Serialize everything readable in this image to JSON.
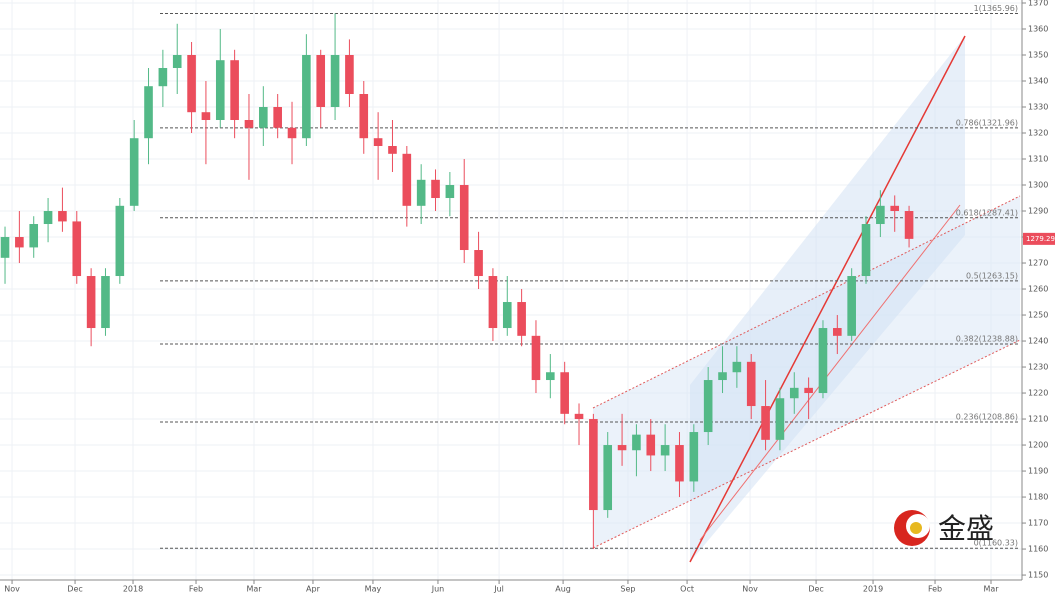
{
  "chart_data": {
    "type": "candlestick",
    "categories": [
      null,
      null,
      null,
      null,
      null,
      null,
      null,
      null,
      null,
      null,
      null,
      null,
      null,
      null,
      null,
      null,
      null,
      null,
      null,
      null,
      null,
      null,
      null,
      null,
      null,
      null,
      null,
      null,
      null,
      null,
      null,
      null,
      null,
      null,
      null,
      null,
      null,
      null,
      null,
      null,
      null,
      null,
      null,
      null,
      null,
      null,
      null,
      null,
      null,
      null,
      null,
      null,
      null,
      null,
      null,
      null,
      null,
      null,
      null,
      null,
      null,
      null,
      null,
      null
    ],
    "ohlc": [
      [
        1272,
        1284,
        1262,
        1280
      ],
      [
        1280,
        1290,
        1270,
        1276
      ],
      [
        1276,
        1288,
        1272,
        1285
      ],
      [
        1285,
        1295,
        1278,
        1290
      ],
      [
        1290,
        1299,
        1282,
        1286
      ],
      [
        1286,
        1290,
        1262,
        1265
      ],
      [
        1265,
        1268,
        1238,
        1245
      ],
      [
        1245,
        1268,
        1242,
        1265
      ],
      [
        1265,
        1295,
        1262,
        1292
      ],
      [
        1292,
        1325,
        1290,
        1318
      ],
      [
        1318,
        1345,
        1308,
        1338
      ],
      [
        1338,
        1352,
        1330,
        1345
      ],
      [
        1345,
        1362,
        1335,
        1350
      ],
      [
        1350,
        1355,
        1320,
        1328
      ],
      [
        1328,
        1340,
        1308,
        1325
      ],
      [
        1325,
        1360,
        1322,
        1348
      ],
      [
        1348,
        1352,
        1318,
        1325
      ],
      [
        1325,
        1335,
        1302,
        1322
      ],
      [
        1322,
        1338,
        1315,
        1330
      ],
      [
        1330,
        1335,
        1318,
        1322
      ],
      [
        1322,
        1332,
        1308,
        1318
      ],
      [
        1318,
        1358,
        1315,
        1350
      ],
      [
        1350,
        1352,
        1322,
        1330
      ],
      [
        1330,
        1366,
        1325,
        1350
      ],
      [
        1350,
        1356,
        1330,
        1335
      ],
      [
        1335,
        1340,
        1312,
        1318
      ],
      [
        1318,
        1328,
        1302,
        1315
      ],
      [
        1315,
        1325,
        1305,
        1312
      ],
      [
        1312,
        1315,
        1284,
        1292
      ],
      [
        1292,
        1308,
        1285,
        1302
      ],
      [
        1302,
        1306,
        1290,
        1295
      ],
      [
        1295,
        1305,
        1288,
        1300
      ],
      [
        1300,
        1310,
        1270,
        1275
      ],
      [
        1275,
        1282,
        1260,
        1265
      ],
      [
        1265,
        1268,
        1240,
        1245
      ],
      [
        1245,
        1265,
        1242,
        1255
      ],
      [
        1255,
        1260,
        1238,
        1242
      ],
      [
        1242,
        1248,
        1220,
        1225
      ],
      [
        1225,
        1235,
        1218,
        1228
      ],
      [
        1228,
        1232,
        1208,
        1212
      ],
      [
        1212,
        1216,
        1200,
        1210
      ],
      [
        1210,
        1212,
        1160,
        1175
      ],
      [
        1175,
        1205,
        1172,
        1200
      ],
      [
        1200,
        1212,
        1192,
        1198
      ],
      [
        1198,
        1208,
        1188,
        1204
      ],
      [
        1204,
        1210,
        1190,
        1196
      ],
      [
        1196,
        1208,
        1190,
        1200
      ],
      [
        1200,
        1205,
        1180,
        1186
      ],
      [
        1186,
        1208,
        1182,
        1205
      ],
      [
        1205,
        1230,
        1200,
        1225
      ],
      [
        1225,
        1238,
        1220,
        1228
      ],
      [
        1228,
        1238,
        1222,
        1232
      ],
      [
        1232,
        1235,
        1210,
        1215
      ],
      [
        1215,
        1225,
        1198,
        1202
      ],
      [
        1202,
        1222,
        1198,
        1218
      ],
      [
        1218,
        1228,
        1212,
        1222
      ],
      [
        1222,
        1226,
        1210,
        1220
      ],
      [
        1220,
        1248,
        1218,
        1245
      ],
      [
        1245,
        1250,
        1235,
        1242
      ],
      [
        1242,
        1268,
        1240,
        1265
      ],
      [
        1265,
        1288,
        1262,
        1285
      ],
      [
        1285,
        1298,
        1280,
        1292
      ],
      [
        1292,
        1296,
        1282,
        1290
      ],
      [
        1290,
        1292,
        1276,
        1279.29
      ]
    ],
    "up_color": "#53b987",
    "down_color": "#eb4d5c",
    "xlim": [
      -0.35,
      70.87
    ],
    "xticks": [
      {
        "value": 0.49,
        "label": "Nov"
      },
      {
        "value": 4.88,
        "label": "Dec"
      },
      {
        "value": 8.92,
        "label": "2018"
      },
      {
        "value": 13.31,
        "label": "Feb"
      },
      {
        "value": 17.35,
        "label": "Mar"
      },
      {
        "value": 21.46,
        "label": "Apr"
      },
      {
        "value": 25.64,
        "label": "May"
      },
      {
        "value": 30.17,
        "label": "Jun"
      },
      {
        "value": 34.43,
        "label": "Jul"
      },
      {
        "value": 38.89,
        "label": "Aug"
      },
      {
        "value": 43.41,
        "label": "Sep"
      },
      {
        "value": 47.53,
        "label": "Oct"
      },
      {
        "value": 51.92,
        "label": "Nov"
      },
      {
        "value": 56.52,
        "label": "Dec"
      },
      {
        "value": 60.49,
        "label": "2019"
      },
      {
        "value": 64.81,
        "label": "Feb"
      },
      {
        "value": 68.71,
        "label": "Mar"
      }
    ],
    "ylim": [
      1148.1,
      1371.15
    ],
    "yticks": [
      1150,
      1160,
      1170,
      1180,
      1190,
      1200,
      1210,
      1220,
      1230,
      1240,
      1250,
      1260,
      1270,
      1280,
      1290,
      1300,
      1310,
      1320,
      1330,
      1340,
      1350,
      1360,
      1370
    ],
    "grid": true,
    "fib_levels": [
      {
        "value": 1365.96,
        "label": "1(1365.96)"
      },
      {
        "value": 1321.96,
        "label": "0.786(1321.96)"
      },
      {
        "value": 1287.41,
        "label": "0.618(1287.41)"
      },
      {
        "value": 1263.15,
        "label": "0.5(1263.15)"
      },
      {
        "value": 1238.88,
        "label": "0.382(1238.88)"
      },
      {
        "value": 1208.86,
        "label": "0.236(1208.86)"
      },
      {
        "value": 1160.33,
        "label": "0(1160.33)"
      }
    ],
    "watermark": "金盛"
  }
}
